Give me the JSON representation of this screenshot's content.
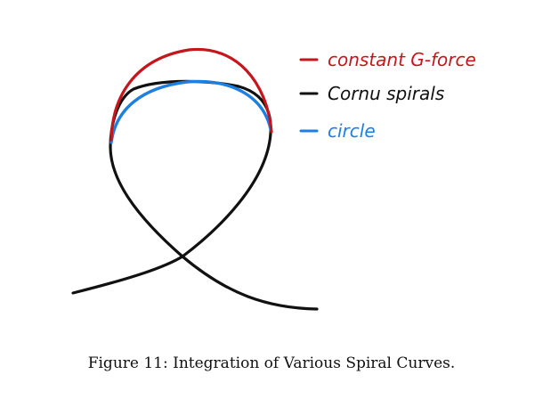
{
  "legend": {
    "items": [
      {
        "label": "constant G-force",
        "color": "#c4161c"
      },
      {
        "label": "Cornu spirals",
        "color": "#111111"
      },
      {
        "label": "circle",
        "color": "#1f7fe0"
      }
    ]
  },
  "caption": "Figure 11: Integration of Various Spiral Curves."
}
